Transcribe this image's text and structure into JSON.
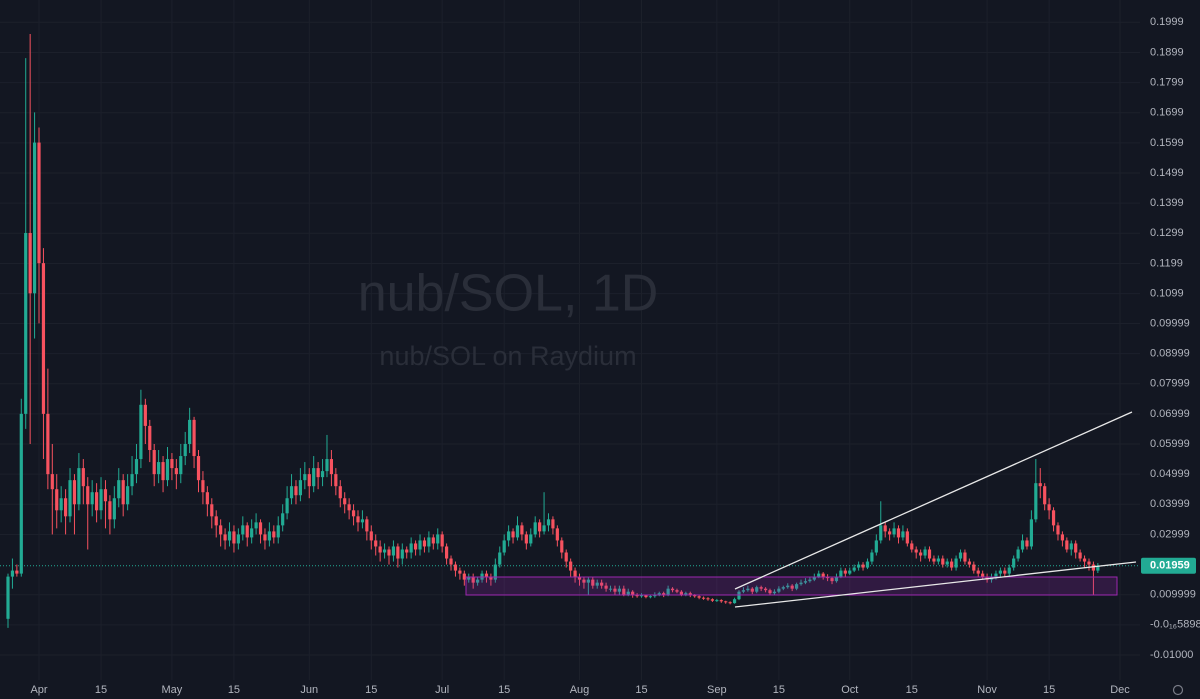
{
  "chart_data": {
    "type": "candlestick",
    "title": "nub/SOL, 1D",
    "subtitle": "nub/SOL on Raydium",
    "up_color": "#22ab94",
    "down_color": "#f7525f",
    "grid": true,
    "ylim": [
      -0.0183,
      0.2073
    ],
    "yticks": [
      0.1999,
      0.1899,
      0.1799,
      0.1699,
      0.1599,
      0.1499,
      0.1399,
      0.1299,
      0.1199,
      0.1099,
      0.09999,
      0.08999,
      0.07999,
      0.06999,
      0.05999,
      0.04999,
      0.03999,
      0.02999,
      0.009999,
      {
        "value": -5.898e-17,
        "label": "-0.0₁₆5898"
      },
      {
        "value": -0.01,
        "label": "-0.01000"
      }
    ],
    "categories": [
      null,
      null,
      null,
      null,
      null,
      null,
      null,
      "Apr",
      null,
      null,
      null,
      null,
      null,
      null,
      null,
      null,
      null,
      null,
      null,
      null,
      null,
      "15",
      null,
      null,
      null,
      null,
      null,
      null,
      null,
      null,
      null,
      null,
      null,
      null,
      null,
      null,
      null,
      "May",
      null,
      null,
      null,
      null,
      null,
      null,
      null,
      null,
      null,
      null,
      null,
      null,
      null,
      "15",
      null,
      null,
      null,
      null,
      null,
      null,
      null,
      null,
      null,
      null,
      null,
      null,
      null,
      null,
      null,
      null,
      "Jun",
      null,
      null,
      null,
      null,
      null,
      null,
      null,
      null,
      null,
      null,
      null,
      null,
      null,
      "15",
      null,
      null,
      null,
      null,
      null,
      null,
      null,
      null,
      null,
      null,
      null,
      null,
      null,
      null,
      null,
      "Jul",
      null,
      null,
      null,
      null,
      null,
      null,
      null,
      null,
      null,
      null,
      null,
      null,
      null,
      "15",
      null,
      null,
      null,
      null,
      null,
      null,
      null,
      null,
      null,
      null,
      null,
      null,
      null,
      null,
      null,
      null,
      "Aug",
      null,
      null,
      null,
      null,
      null,
      null,
      null,
      null,
      null,
      null,
      null,
      null,
      null,
      "15",
      null,
      null,
      null,
      null,
      null,
      null,
      null,
      null,
      null,
      null,
      null,
      null,
      null,
      null,
      null,
      null,
      "Sep",
      null,
      null,
      null,
      null,
      null,
      null,
      null,
      null,
      null,
      null,
      null,
      null,
      null,
      "15",
      null,
      null,
      null,
      null,
      null,
      null,
      null,
      null,
      null,
      null,
      null,
      null,
      null,
      null,
      null,
      "Oct",
      null,
      null,
      null,
      null,
      null,
      null,
      null,
      null,
      null,
      null,
      null,
      null,
      null,
      "15",
      null,
      null,
      null,
      null,
      null,
      null,
      null,
      null,
      null,
      null,
      null,
      null,
      null,
      null,
      null,
      null,
      "Nov",
      null,
      null,
      null,
      null,
      null,
      null,
      null,
      null,
      null,
      null,
      null,
      null,
      null,
      "15",
      null,
      null,
      null,
      null,
      null,
      null,
      null,
      null,
      null,
      null,
      null,
      null,
      null,
      null,
      null,
      "Dec"
    ],
    "open": [
      0.002,
      0.016,
      0.018,
      0.017,
      0.07,
      0.13,
      0.11,
      0.16,
      0.12,
      0.07,
      0.05,
      0.045,
      0.038,
      0.042,
      0.036,
      0.048,
      0.04,
      0.052,
      0.046,
      0.04,
      0.044,
      0.038,
      0.045,
      0.041,
      0.035,
      0.042,
      0.048,
      0.04,
      0.046,
      0.05,
      0.055,
      0.073,
      0.066,
      0.058,
      0.05,
      0.054,
      0.048,
      0.055,
      0.052,
      0.05,
      0.056,
      0.06,
      0.068,
      0.056,
      0.048,
      0.044,
      0.04,
      0.036,
      0.033,
      0.03,
      0.028,
      0.031,
      0.027,
      0.03,
      0.033,
      0.029,
      0.032,
      0.034,
      0.03,
      0.028,
      0.031,
      0.029,
      0.033,
      0.037,
      0.042,
      0.046,
      0.043,
      0.048,
      0.05,
      0.046,
      0.052,
      0.049,
      0.051,
      0.055,
      0.05,
      0.046,
      0.042,
      0.04,
      0.038,
      0.036,
      0.034,
      0.035,
      0.031,
      0.028,
      0.026,
      0.024,
      0.025,
      0.023,
      0.026,
      0.022,
      0.025,
      0.024,
      0.027,
      0.025,
      0.028,
      0.026,
      0.029,
      0.027,
      0.03,
      0.026,
      0.022,
      0.02,
      0.018,
      0.017,
      0.015,
      0.016,
      0.014,
      0.015,
      0.017,
      0.016,
      0.015,
      0.02,
      0.024,
      0.028,
      0.031,
      0.029,
      0.033,
      0.03,
      0.027,
      0.03,
      0.034,
      0.031,
      0.033,
      0.035,
      0.032,
      0.028,
      0.024,
      0.021,
      0.018,
      0.016,
      0.015,
      0.014,
      0.015,
      0.013,
      0.014,
      0.013,
      0.012,
      0.012,
      0.011,
      0.012,
      0.01,
      0.011,
      0.01,
      0.0095,
      0.0098,
      0.0092,
      0.0095,
      0.01,
      0.0105,
      0.0098,
      0.012,
      0.0115,
      0.011,
      0.01,
      0.0105,
      0.0098,
      0.0095,
      0.009,
      0.0088,
      0.0085,
      0.008,
      0.0082,
      0.0078,
      0.0075,
      0.0072,
      0.0085,
      0.011,
      0.0115,
      0.012,
      0.011,
      0.0125,
      0.012,
      0.0115,
      0.0105,
      0.011,
      0.012,
      0.0125,
      0.013,
      0.012,
      0.0135,
      0.014,
      0.0145,
      0.015,
      0.016,
      0.017,
      0.016,
      0.0155,
      0.0145,
      0.016,
      0.018,
      0.017,
      0.018,
      0.019,
      0.02,
      0.019,
      0.021,
      0.024,
      0.028,
      0.033,
      0.031,
      0.03,
      0.032,
      0.029,
      0.031,
      0.027,
      0.025,
      0.024,
      0.023,
      0.025,
      0.022,
      0.021,
      0.022,
      0.02,
      0.021,
      0.019,
      0.022,
      0.024,
      0.021,
      0.02,
      0.018,
      0.017,
      0.016,
      0.015,
      0.016,
      0.017,
      0.018,
      0.017,
      0.019,
      0.022,
      0.025,
      0.028,
      0.026,
      0.035,
      0.047,
      0.046,
      0.04,
      0.038,
      0.033,
      0.03,
      0.028,
      0.025,
      0.027,
      0.024,
      0.022,
      0.021,
      0.02,
      0.018,
      null,
      null,
      null,
      null,
      null
    ],
    "high": [
      0.017,
      0.022,
      0.02,
      0.075,
      0.188,
      0.196,
      0.17,
      0.165,
      0.125,
      0.085,
      0.06,
      0.05,
      0.046,
      0.045,
      0.052,
      0.05,
      0.057,
      0.055,
      0.049,
      0.048,
      0.047,
      0.049,
      0.048,
      0.043,
      0.046,
      0.052,
      0.05,
      0.05,
      0.056,
      0.06,
      0.078,
      0.075,
      0.068,
      0.06,
      0.058,
      0.056,
      0.059,
      0.057,
      0.055,
      0.06,
      0.064,
      0.072,
      0.069,
      0.058,
      0.051,
      0.046,
      0.042,
      0.038,
      0.035,
      0.032,
      0.034,
      0.033,
      0.032,
      0.036,
      0.034,
      0.035,
      0.037,
      0.035,
      0.032,
      0.034,
      0.033,
      0.036,
      0.04,
      0.046,
      0.05,
      0.048,
      0.052,
      0.054,
      0.052,
      0.056,
      0.054,
      0.055,
      0.063,
      0.058,
      0.052,
      0.048,
      0.044,
      0.042,
      0.04,
      0.038,
      0.038,
      0.036,
      0.033,
      0.03,
      0.028,
      0.027,
      0.026,
      0.028,
      0.027,
      0.027,
      0.026,
      0.029,
      0.028,
      0.03,
      0.029,
      0.031,
      0.03,
      0.032,
      0.031,
      0.027,
      0.023,
      0.021,
      0.019,
      0.018,
      0.017,
      0.017,
      0.016,
      0.018,
      0.018,
      0.017,
      0.022,
      0.026,
      0.03,
      0.033,
      0.032,
      0.036,
      0.034,
      0.031,
      0.032,
      0.036,
      0.035,
      0.044,
      0.037,
      0.036,
      0.033,
      0.029,
      0.025,
      0.022,
      0.019,
      0.017,
      0.016,
      0.016,
      0.016,
      0.015,
      0.015,
      0.014,
      0.013,
      0.013,
      0.013,
      0.013,
      0.012,
      0.0115,
      0.0105,
      0.0105,
      0.01,
      0.01,
      0.0108,
      0.011,
      0.011,
      0.013,
      0.0125,
      0.012,
      0.0115,
      0.011,
      0.011,
      0.0102,
      0.0098,
      0.0094,
      0.0092,
      0.0088,
      0.0086,
      0.0085,
      0.008,
      0.0078,
      0.009,
      0.0115,
      0.0125,
      0.013,
      0.0125,
      0.013,
      0.013,
      0.0125,
      0.012,
      0.0118,
      0.0128,
      0.013,
      0.0138,
      0.0135,
      0.014,
      0.015,
      0.0155,
      0.016,
      0.017,
      0.018,
      0.0175,
      0.0168,
      0.016,
      0.017,
      0.019,
      0.0188,
      0.019,
      0.02,
      0.021,
      0.0208,
      0.022,
      0.025,
      0.03,
      0.041,
      0.034,
      0.032,
      0.034,
      0.033,
      0.033,
      0.032,
      0.028,
      0.026,
      0.025,
      0.026,
      0.026,
      0.023,
      0.023,
      0.023,
      0.022,
      0.022,
      0.023,
      0.025,
      0.025,
      0.022,
      0.021,
      0.019,
      0.018,
      0.017,
      0.017,
      0.018,
      0.019,
      0.019,
      0.02,
      0.023,
      0.026,
      0.03,
      0.029,
      0.038,
      0.055,
      0.052,
      0.047,
      0.042,
      0.039,
      0.034,
      0.031,
      0.029,
      0.028,
      0.028,
      0.025,
      0.023,
      0.022,
      0.021,
      0.0205,
      null,
      null,
      null,
      null,
      null
    ],
    "low": [
      -0.001,
      0.012,
      0.016,
      0.016,
      0.065,
      0.06,
      0.095,
      0.1,
      0.055,
      0.045,
      0.03,
      0.032,
      0.034,
      0.03,
      0.034,
      0.03,
      0.038,
      0.04,
      0.025,
      0.036,
      0.034,
      0.035,
      0.032,
      0.03,
      0.032,
      0.039,
      0.036,
      0.038,
      0.043,
      0.047,
      0.052,
      0.06,
      0.054,
      0.046,
      0.047,
      0.044,
      0.046,
      0.048,
      0.045,
      0.047,
      0.053,
      0.057,
      0.052,
      0.044,
      0.04,
      0.036,
      0.032,
      0.029,
      0.026,
      0.025,
      0.026,
      0.024,
      0.025,
      0.028,
      0.026,
      0.027,
      0.03,
      0.027,
      0.025,
      0.026,
      0.027,
      0.027,
      0.031,
      0.035,
      0.04,
      0.04,
      0.041,
      0.045,
      0.042,
      0.044,
      0.045,
      0.046,
      0.049,
      0.046,
      0.043,
      0.039,
      0.037,
      0.035,
      0.033,
      0.031,
      0.032,
      0.028,
      0.025,
      0.023,
      0.021,
      0.022,
      0.02,
      0.021,
      0.019,
      0.02,
      0.022,
      0.022,
      0.023,
      0.023,
      0.024,
      0.024,
      0.025,
      0.025,
      0.024,
      0.02,
      0.018,
      0.016,
      0.015,
      0.013,
      0.014,
      0.012,
      0.013,
      0.014,
      0.014,
      0.013,
      0.014,
      0.019,
      0.023,
      0.026,
      0.027,
      0.028,
      0.028,
      0.025,
      0.026,
      0.029,
      0.029,
      0.03,
      0.031,
      0.03,
      0.026,
      0.022,
      0.019,
      0.016,
      0.014,
      0.013,
      0.012,
      0.01,
      0.012,
      0.012,
      0.012,
      0.011,
      0.011,
      0.01,
      0.01,
      0.0095,
      0.0095,
      0.009,
      0.009,
      0.009,
      0.0088,
      0.0088,
      0.009,
      0.0095,
      0.0092,
      0.0095,
      0.0108,
      0.0105,
      0.0095,
      0.0095,
      0.0092,
      0.009,
      0.0085,
      0.0083,
      0.008,
      0.0076,
      0.0076,
      0.0073,
      0.007,
      0.0068,
      0.007,
      0.0082,
      0.0105,
      0.011,
      0.0102,
      0.0105,
      0.0112,
      0.0108,
      0.0098,
      0.01,
      0.0105,
      0.0115,
      0.012,
      0.0112,
      0.0115,
      0.013,
      0.0135,
      0.014,
      0.0145,
      0.0155,
      0.015,
      0.0145,
      0.0135,
      0.014,
      0.0155,
      0.016,
      0.0165,
      0.0175,
      0.018,
      0.018,
      0.0185,
      0.02,
      0.023,
      0.027,
      0.029,
      0.028,
      0.029,
      0.027,
      0.028,
      0.026,
      0.024,
      0.022,
      0.021,
      0.022,
      0.021,
      0.02,
      0.02,
      0.019,
      0.019,
      0.018,
      0.018,
      0.021,
      0.02,
      0.019,
      0.017,
      0.016,
      0.015,
      0.014,
      0.014,
      0.015,
      0.016,
      0.016,
      0.016,
      0.018,
      0.021,
      0.024,
      0.025,
      0.025,
      0.034,
      0.042,
      0.038,
      0.035,
      0.031,
      0.028,
      0.026,
      0.024,
      0.023,
      0.022,
      0.021,
      0.019,
      0.018,
      0.01,
      0.0172,
      null,
      null,
      null,
      null,
      null
    ],
    "close": [
      0.016,
      0.018,
      0.017,
      0.07,
      0.13,
      0.11,
      0.16,
      0.12,
      0.07,
      0.05,
      0.045,
      0.038,
      0.042,
      0.036,
      0.048,
      0.04,
      0.052,
      0.046,
      0.04,
      0.044,
      0.038,
      0.045,
      0.041,
      0.035,
      0.042,
      0.048,
      0.04,
      0.046,
      0.05,
      0.055,
      0.073,
      0.066,
      0.058,
      0.05,
      0.054,
      0.048,
      0.055,
      0.052,
      0.05,
      0.056,
      0.06,
      0.068,
      0.056,
      0.048,
      0.044,
      0.04,
      0.036,
      0.033,
      0.03,
      0.028,
      0.031,
      0.027,
      0.03,
      0.033,
      0.029,
      0.032,
      0.034,
      0.03,
      0.028,
      0.031,
      0.029,
      0.033,
      0.037,
      0.042,
      0.046,
      0.043,
      0.048,
      0.05,
      0.046,
      0.052,
      0.049,
      0.051,
      0.055,
      0.05,
      0.046,
      0.042,
      0.04,
      0.038,
      0.036,
      0.034,
      0.035,
      0.031,
      0.028,
      0.026,
      0.024,
      0.025,
      0.023,
      0.026,
      0.022,
      0.025,
      0.024,
      0.027,
      0.025,
      0.028,
      0.026,
      0.029,
      0.027,
      0.03,
      0.026,
      0.022,
      0.02,
      0.018,
      0.017,
      0.015,
      0.016,
      0.014,
      0.015,
      0.017,
      0.016,
      0.015,
      0.02,
      0.024,
      0.028,
      0.031,
      0.029,
      0.033,
      0.03,
      0.027,
      0.03,
      0.034,
      0.031,
      0.033,
      0.035,
      0.032,
      0.028,
      0.024,
      0.021,
      0.018,
      0.016,
      0.015,
      0.014,
      0.015,
      0.013,
      0.014,
      0.013,
      0.012,
      0.012,
      0.011,
      0.012,
      0.01,
      0.011,
      0.01,
      0.0095,
      0.0098,
      0.0092,
      0.0095,
      0.01,
      0.0105,
      0.0098,
      0.012,
      0.0115,
      0.011,
      0.01,
      0.0105,
      0.0098,
      0.0095,
      0.009,
      0.0088,
      0.0085,
      0.008,
      0.0082,
      0.0078,
      0.0075,
      0.0072,
      0.0085,
      0.011,
      0.0115,
      0.012,
      0.011,
      0.0125,
      0.012,
      0.0115,
      0.0105,
      0.011,
      0.012,
      0.0125,
      0.013,
      0.012,
      0.0135,
      0.014,
      0.0145,
      0.015,
      0.016,
      0.017,
      0.016,
      0.0155,
      0.0145,
      0.016,
      0.018,
      0.017,
      0.018,
      0.019,
      0.02,
      0.019,
      0.021,
      0.024,
      0.028,
      0.033,
      0.031,
      0.03,
      0.032,
      0.029,
      0.031,
      0.027,
      0.025,
      0.024,
      0.023,
      0.025,
      0.022,
      0.021,
      0.022,
      0.02,
      0.021,
      0.019,
      0.022,
      0.024,
      0.021,
      0.02,
      0.018,
      0.017,
      0.016,
      0.015,
      0.016,
      0.017,
      0.018,
      0.017,
      0.019,
      0.022,
      0.025,
      0.028,
      0.026,
      0.035,
      0.047,
      0.046,
      0.04,
      0.038,
      0.033,
      0.03,
      0.028,
      0.025,
      0.027,
      0.024,
      0.022,
      0.021,
      0.02,
      0.018,
      0.01959,
      null,
      null,
      null,
      null,
      null
    ]
  }
}
